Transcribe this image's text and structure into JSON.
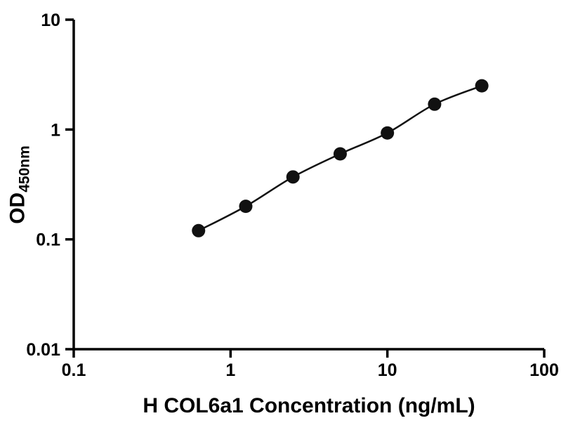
{
  "chart_data": {
    "type": "scatter",
    "title": "",
    "xlabel": "H COL6a1 Concentration (ng/mL)",
    "ylabel_main": "OD",
    "ylabel_sub": "450nm",
    "xscale": "log",
    "yscale": "log",
    "xlim": [
      0.1,
      100
    ],
    "ylim": [
      0.01,
      10
    ],
    "x_ticks": [
      0.1,
      1,
      10,
      100
    ],
    "x_tick_labels": [
      "0.1",
      "1",
      "10",
      "100"
    ],
    "y_ticks": [
      0.01,
      0.1,
      1,
      10
    ],
    "y_tick_labels": [
      "0.01",
      "0.1",
      "1",
      "10"
    ],
    "x": [
      0.625,
      1.25,
      2.5,
      5,
      10,
      20,
      40
    ],
    "y": [
      0.12,
      0.2,
      0.37,
      0.6,
      0.93,
      1.7,
      2.5
    ],
    "grid": false,
    "legend": "none",
    "curve": "smooth-fit",
    "marker": "filled-circle",
    "marker_color": "#111111",
    "line_color": "#111111",
    "axis_color": "#000000",
    "background_color": "#ffffff"
  }
}
